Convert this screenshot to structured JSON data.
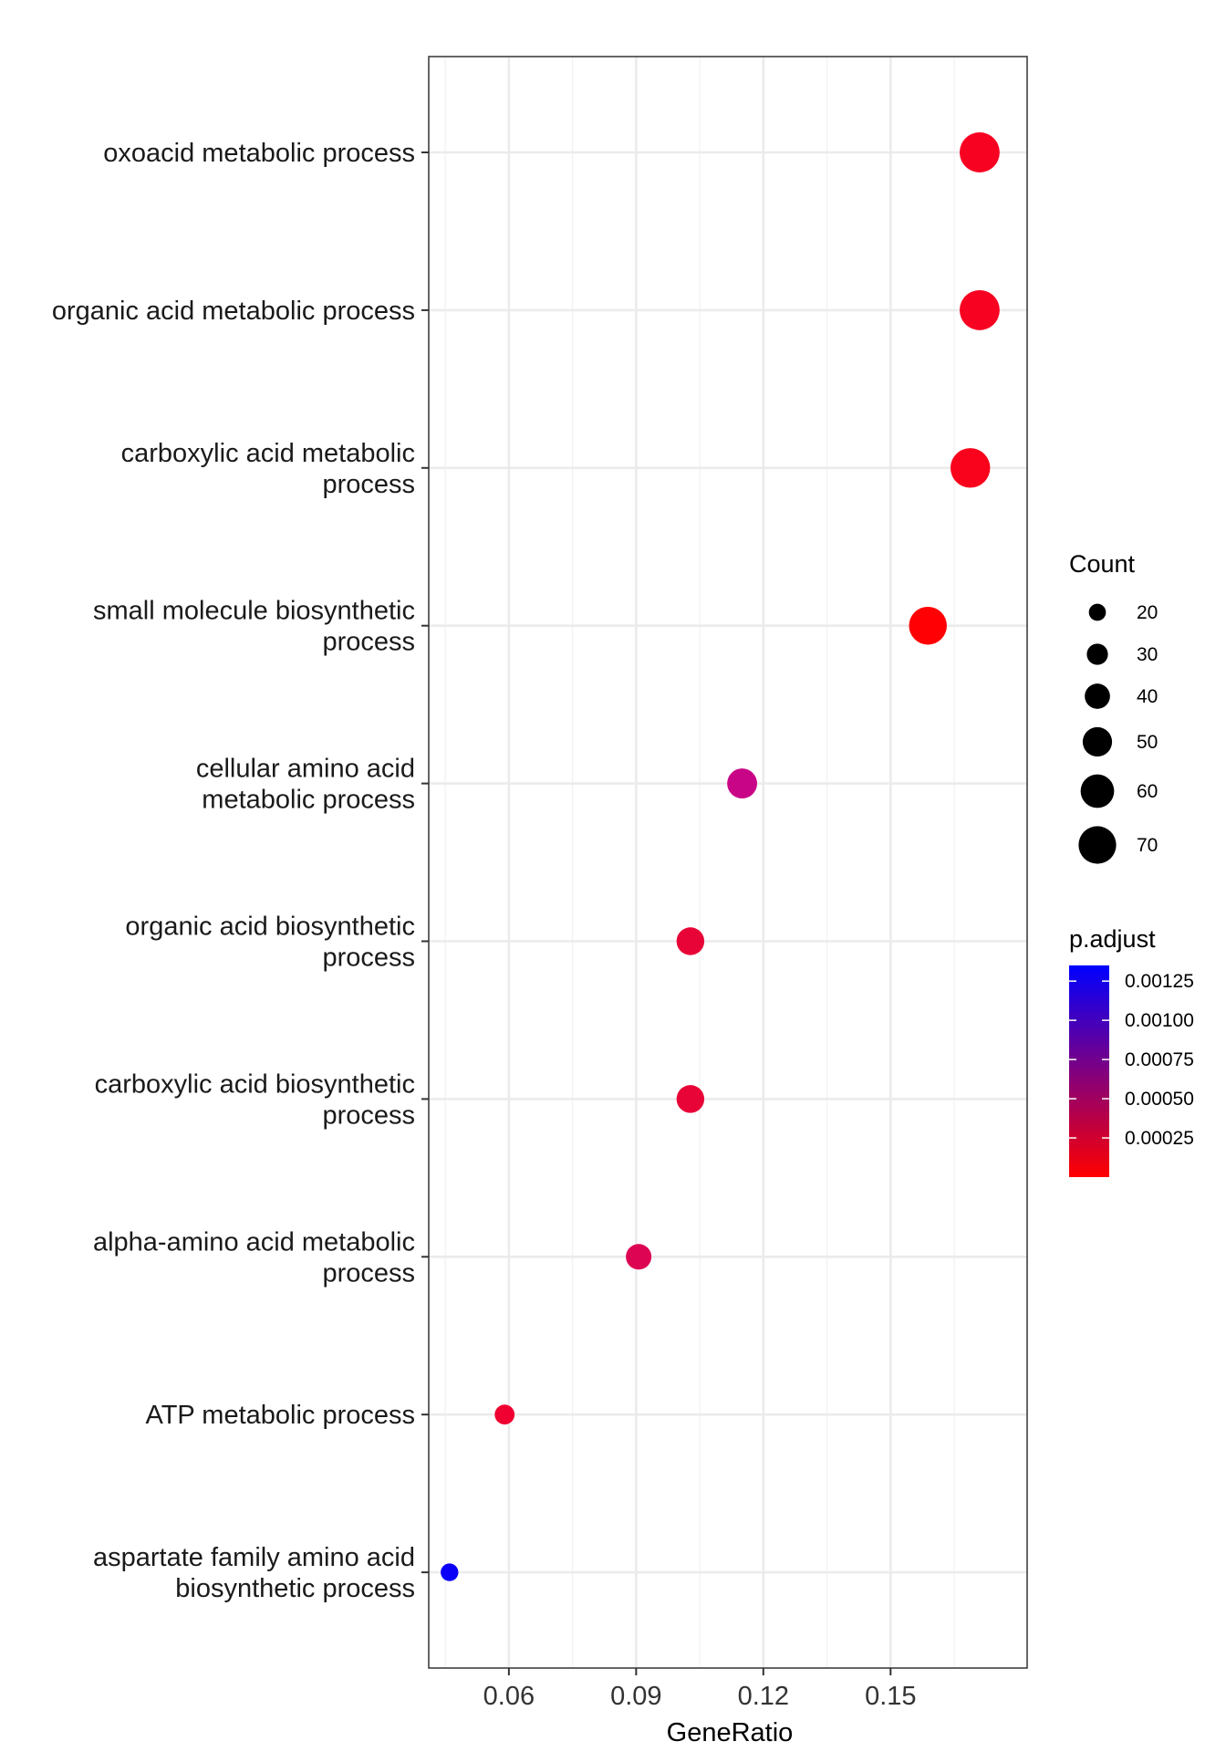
{
  "chart_data": {
    "type": "scatter",
    "xlabel": "GeneRatio",
    "xlim": [
      0.0411,
      0.1822
    ],
    "xticks": [
      0.06,
      0.09,
      0.12,
      0.15
    ],
    "xtick_labels": [
      "0.06",
      "0.09",
      "0.12",
      "0.15"
    ],
    "grid": true,
    "legend_position": "right",
    "categories": [
      [
        "oxoacid metabolic process"
      ],
      [
        "organic acid metabolic process"
      ],
      [
        "carboxylic acid metabolic",
        "process"
      ],
      [
        "small molecule biosynthetic",
        "process"
      ],
      [
        "cellular amino acid",
        "metabolic process"
      ],
      [
        "organic acid biosynthetic",
        "process"
      ],
      [
        "carboxylic acid biosynthetic",
        "process"
      ],
      [
        "alpha-amino acid metabolic",
        "process"
      ],
      [
        "ATP metabolic process"
      ],
      [
        "aspartate family amino acid",
        "biosynthetic process"
      ]
    ],
    "points": [
      {
        "x": 0.171,
        "count": 70,
        "p_adjust": 4e-05,
        "color": "#F80222"
      },
      {
        "x": 0.171,
        "count": 70,
        "p_adjust": 4e-05,
        "color": "#F80222"
      },
      {
        "x": 0.1688,
        "count": 69,
        "p_adjust": 3e-05,
        "color": "#F8021C"
      },
      {
        "x": 0.1588,
        "count": 65,
        "p_adjust": 1e-05,
        "color": "#FF0005"
      },
      {
        "x": 0.115,
        "count": 47,
        "p_adjust": 0.00062,
        "color": "#C90587"
      },
      {
        "x": 0.1028,
        "count": 42,
        "p_adjust": 0.00017,
        "color": "#E80437"
      },
      {
        "x": 0.1028,
        "count": 42,
        "p_adjust": 0.00017,
        "color": "#E80437"
      },
      {
        "x": 0.0906,
        "count": 37,
        "p_adjust": 0.0003,
        "color": "#DE0454"
      },
      {
        "x": 0.059,
        "count": 24,
        "p_adjust": 0.00012,
        "color": "#F00030"
      },
      {
        "x": 0.046,
        "count": 19,
        "p_adjust": 0.00135,
        "color": "#0A00F8"
      }
    ],
    "size_legend": {
      "title": "Count",
      "values": [
        20,
        30,
        40,
        50,
        60,
        70
      ],
      "labels": [
        "20",
        "30",
        "40",
        "50",
        "60",
        "70"
      ],
      "color": "#000000"
    },
    "color_legend": {
      "title": "p.adjust",
      "low_color": "#FF0000",
      "high_color": "#0000FF",
      "range": [
        0.0,
        0.00135
      ],
      "ticks": [
        0.00125,
        0.001,
        0.00075,
        0.0005,
        0.00025
      ],
      "labels": [
        "0.00125",
        "0.00100",
        "0.00075",
        "0.00050",
        "0.00025"
      ]
    }
  }
}
